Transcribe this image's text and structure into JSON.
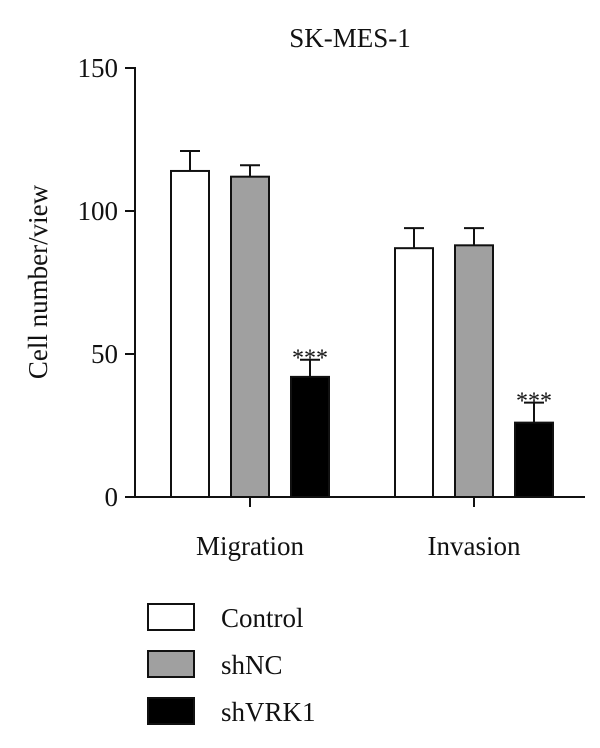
{
  "chart_data": {
    "type": "bar",
    "title": "SK-MES-1",
    "xlabel": "",
    "ylabel": "Cell number/view",
    "categories": [
      "Migration",
      "Invasion"
    ],
    "ylim": [
      0,
      150
    ],
    "yticks": [
      0,
      50,
      100,
      150
    ],
    "grid": false,
    "legend": {
      "placement": "bottom-left"
    },
    "series": [
      {
        "name": "Control",
        "values": [
          114,
          87
        ],
        "errors": [
          7,
          7
        ],
        "color": "#ffffff",
        "significance": [
          "",
          ""
        ]
      },
      {
        "name": "shNC",
        "values": [
          112,
          88
        ],
        "errors": [
          4,
          6
        ],
        "color": "#a0a0a0",
        "significance": [
          "",
          ""
        ]
      },
      {
        "name": "shVRK1",
        "values": [
          42,
          26
        ],
        "errors": [
          6,
          7
        ],
        "color": "#000000",
        "significance": [
          "***",
          "***"
        ]
      }
    ]
  }
}
